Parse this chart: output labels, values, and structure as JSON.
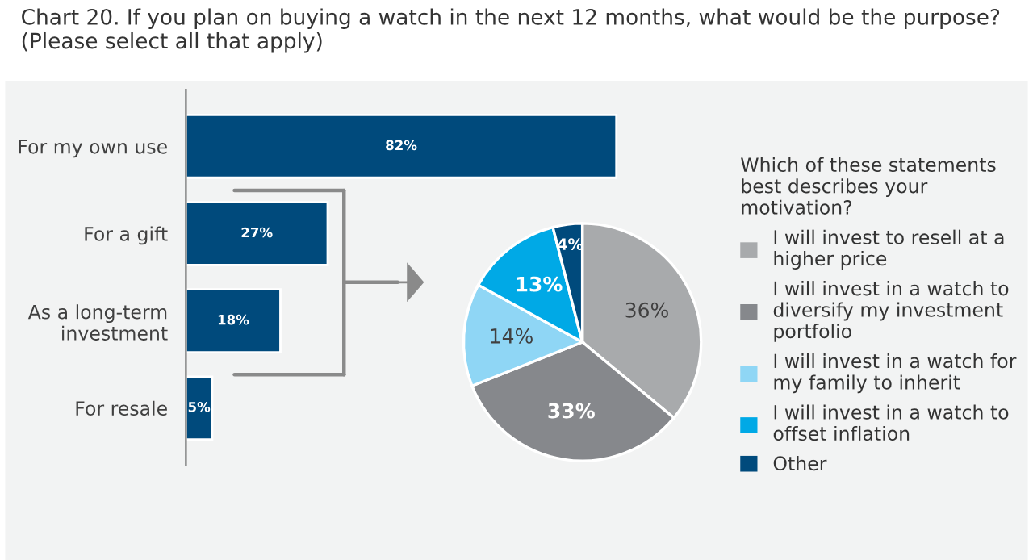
{
  "chart_data": [
    {
      "type": "bar",
      "orientation": "horizontal",
      "title": "Chart 20. If you plan on buying a watch in the next 12 months, what would be the purpose?\n(Please select all that apply)",
      "categories": [
        "For my own use",
        "For a gift",
        "As a long-term\ninvestment",
        "For resale"
      ],
      "values": [
        82,
        27,
        18,
        5
      ],
      "value_labels": [
        "82%",
        "27%",
        "18%",
        "5%"
      ],
      "color": "#004a7c"
    },
    {
      "type": "pie",
      "legend_title": "Which of these statements\nbest describes your\nmotivation?",
      "legend": "right",
      "categories": [
        "I will invest to resell at a\nhigher price",
        "I will invest in a watch to\ndiversify my investment\nportfolio",
        "I will invest in a watch for\nmy family to inherit",
        "I will invest in a watch to\noffset inflation",
        "Other"
      ],
      "values": [
        36,
        33,
        14,
        13,
        4
      ],
      "value_labels": [
        "36%",
        "33%",
        "14%",
        "13%",
        "4%"
      ],
      "colors": [
        "#a8aaac",
        "#86888c",
        "#8fd6f5",
        "#00a9e6",
        "#004a7c"
      ]
    }
  ]
}
